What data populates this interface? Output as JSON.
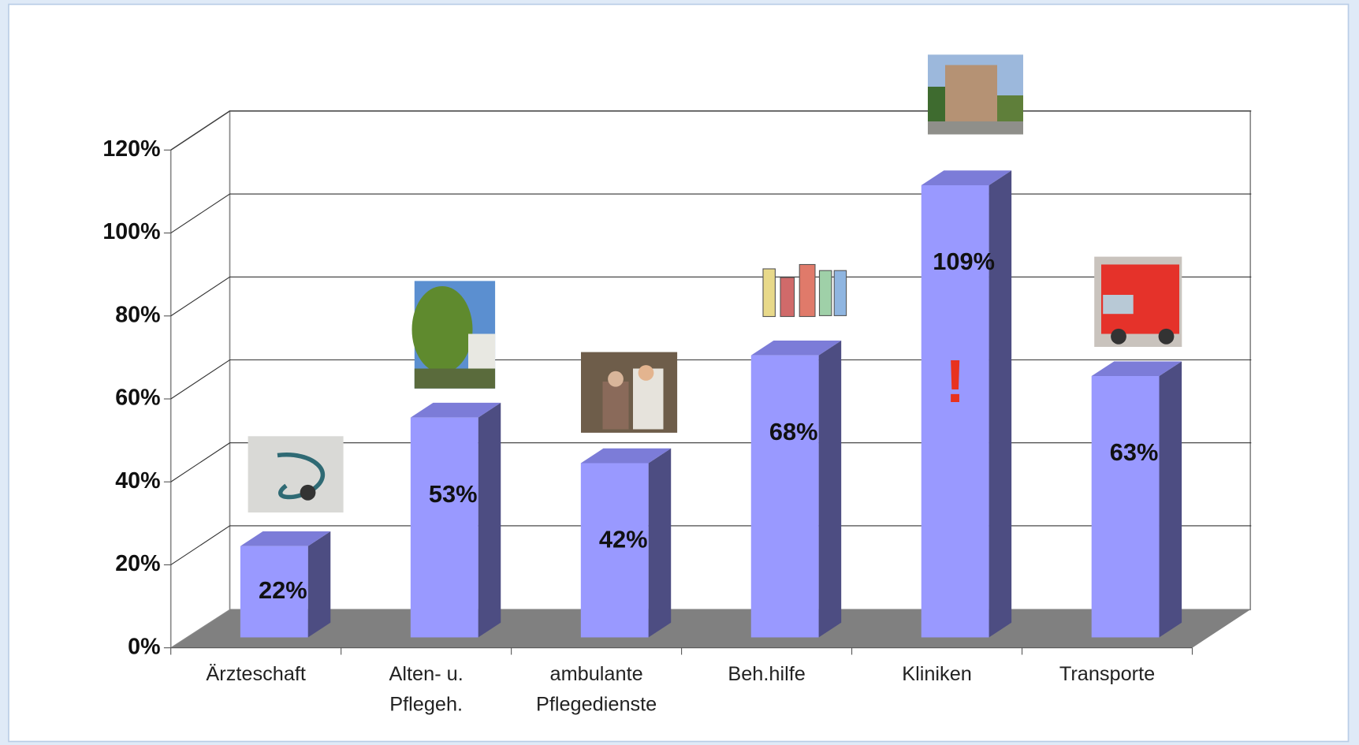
{
  "chart_data": {
    "type": "bar3d",
    "categories": [
      "Ärzteschaft",
      "Alten- u.\nPflegeh.",
      "ambulante\nPflegedienste",
      "Beh.hilfe",
      "Kliniken",
      "Transporte"
    ],
    "values": [
      22,
      53,
      42,
      68,
      109,
      63
    ],
    "value_labels": [
      "22%",
      "53%",
      "42%",
      "68%",
      "109%",
      "63%"
    ],
    "color": "#9999ff",
    "ylim": [
      0,
      120
    ],
    "yticks": [
      {
        "value": 0,
        "label": "0%"
      },
      {
        "value": 20,
        "label": "20%"
      },
      {
        "value": 40,
        "label": "40%"
      },
      {
        "value": 60,
        "label": "60%"
      },
      {
        "value": 80,
        "label": "80%"
      },
      {
        "value": 100,
        "label": "100%"
      },
      {
        "value": 120,
        "label": "120%"
      }
    ],
    "grid": true,
    "annotation": "!"
  }
}
